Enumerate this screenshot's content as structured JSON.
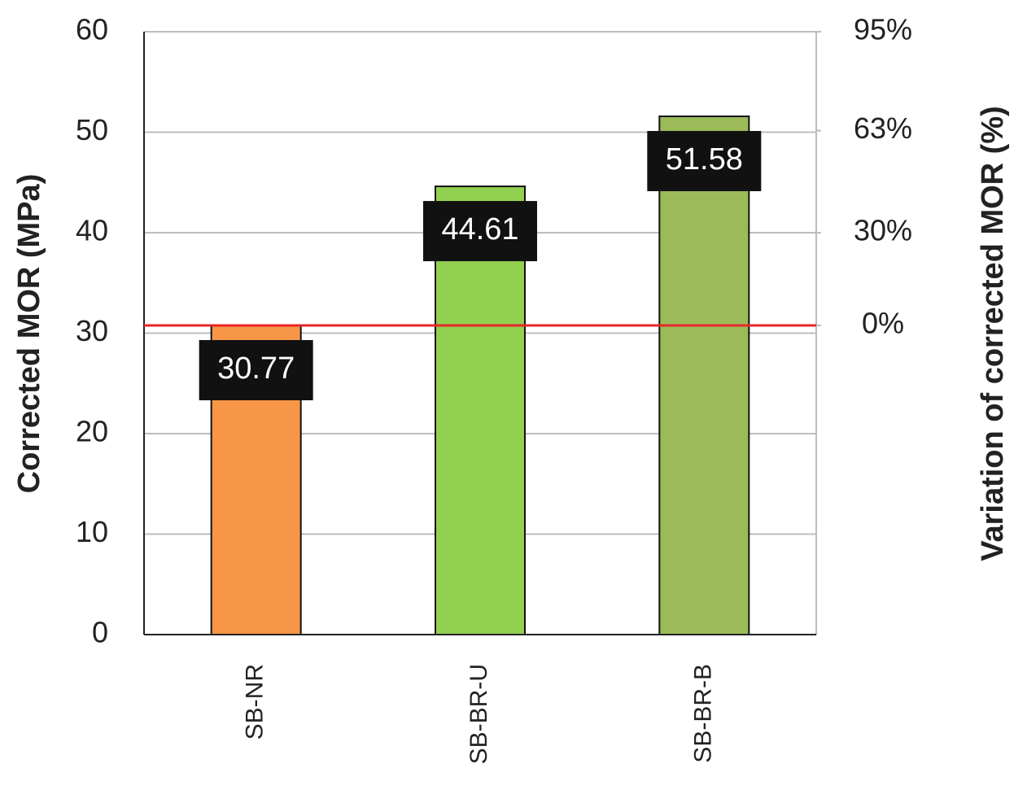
{
  "chart_data": {
    "type": "bar",
    "y_label": "Corrected MOR (MPa)",
    "y2_label": "Variation of corrected MOR (%)",
    "categories": [
      "SB-NR",
      "SB-BR-U",
      "SB-BR-B"
    ],
    "values": [
      30.77,
      44.61,
      51.58
    ],
    "colors": [
      "#f79646",
      "#92d050",
      "#9bbb59"
    ],
    "ylim": [
      0,
      60
    ],
    "yticks": [
      0,
      10,
      20,
      30,
      40,
      50,
      60
    ],
    "y2lim": [
      -100,
      95
    ],
    "y2ticks": [
      {
        "value": 0,
        "label": "0%"
      },
      {
        "value": 30,
        "label": "30%"
      },
      {
        "value": 63,
        "label": "63%"
      },
      {
        "value": 95,
        "label": "95%"
      }
    ],
    "reference_line": {
      "value": 30.77,
      "color": "#e8272a"
    },
    "grid": true
  }
}
